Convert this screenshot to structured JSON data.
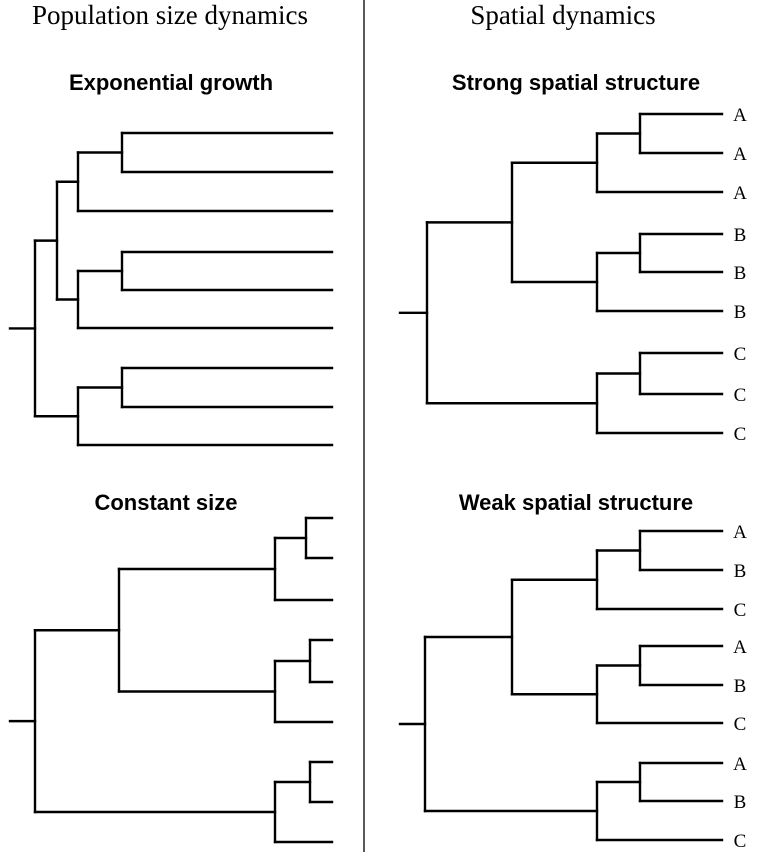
{
  "columns": {
    "left_title": "Population size dynamics",
    "right_title": "Spatial dynamics"
  },
  "panels": [
    {
      "id": "exponential",
      "title": "Exponential growth",
      "tree": [
        "(((((a,b),c),((d,e),f)),((g,h),i))"
      ],
      "tip_labels": [
        "",
        "",
        "",
        "",
        "",
        "",
        "",
        "",
        ""
      ]
    },
    {
      "id": "constant",
      "title": "Constant size",
      "tree": [
        "((((a,b),c),((d,e),f)),((g,h),i))"
      ],
      "tip_labels": [
        "",
        "",
        "",
        "",
        "",
        "",
        "",
        "",
        ""
      ]
    },
    {
      "id": "strong",
      "title": "Strong spatial structure",
      "tree": [
        "((((a,b),c),((d,e),f)),((g,h),i))"
      ],
      "tip_labels": [
        "A",
        "A",
        "A",
        "B",
        "B",
        "B",
        "C",
        "C",
        "C"
      ]
    },
    {
      "id": "weak",
      "title": "Weak spatial structure",
      "tree": [
        "((((a,b),c),((d,e),f)),((g,h),i))"
      ],
      "tip_labels": [
        "A",
        "B",
        "C",
        "A",
        "B",
        "C",
        "A",
        "B",
        "C"
      ]
    }
  ]
}
